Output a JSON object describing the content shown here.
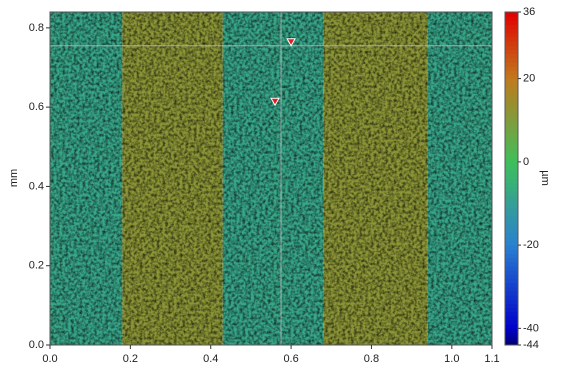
{
  "chart_data": {
    "type": "heatmap",
    "y_label": "mm",
    "colorbar_label": "µm",
    "xlim": [
      0,
      1.1
    ],
    "ylim": [
      0,
      0.84
    ],
    "xticks": [
      {
        "value": 0,
        "label": "0.0"
      },
      0.2,
      0.4,
      0.6,
      0.8,
      {
        "value": 1,
        "label": "1.0"
      },
      1.1
    ],
    "yticks": [
      {
        "value": 0,
        "label": "0.0"
      },
      0.2,
      0.4,
      0.6,
      0.8
    ],
    "clim": [
      -44,
      36
    ],
    "cticks": [
      36,
      20,
      0,
      -20,
      -40,
      -44
    ],
    "colormap": [
      {
        "value": -44,
        "color": "#00006e"
      },
      {
        "value": -40,
        "color": "#0000c8"
      },
      {
        "value": -20,
        "color": "#2a80d0"
      },
      {
        "value": 0,
        "color": "#3fbf5a"
      },
      {
        "value": 20,
        "color": "#c07a1e"
      },
      {
        "value": 36,
        "color": "#e00000"
      }
    ],
    "stripes": [
      {
        "x": [
          0,
          0.18
        ],
        "value": -8
      },
      {
        "x": [
          0.18,
          0.43
        ],
        "value": 12
      },
      {
        "x": [
          0.43,
          0.68
        ],
        "value": -8
      },
      {
        "x": [
          0.68,
          0.94
        ],
        "value": 12
      },
      {
        "x": [
          0.94,
          1.1
        ],
        "value": -8
      }
    ],
    "crosshair": {
      "x": 0.575,
      "y": 0.755
    },
    "markers": [
      {
        "x": 0.6,
        "y": 0.765,
        "color": "#e02020"
      },
      {
        "x": 0.56,
        "y": 0.615,
        "color": "#e02020"
      }
    ]
  }
}
